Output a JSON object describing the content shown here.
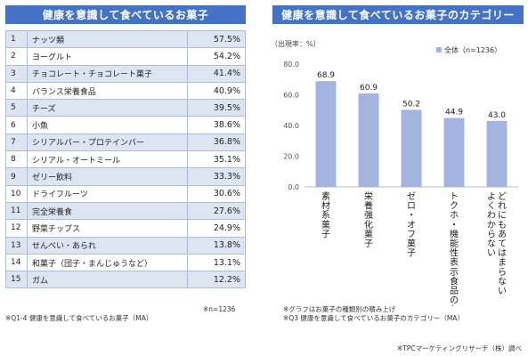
{
  "left_panel": {
    "title": "健康を意識して食べているお菓子",
    "rows": [
      {
        "rank": "1",
        "item": "ナッツ類",
        "pct": "57.5%"
      },
      {
        "rank": "2",
        "item": "ヨーグルト",
        "pct": "54.2%"
      },
      {
        "rank": "3",
        "item": "チョコレート・チョコレート菓子",
        "pct": "41.4%"
      },
      {
        "rank": "4",
        "item": "バランス栄養食品",
        "pct": "40.9%"
      },
      {
        "rank": "5",
        "item": "チーズ",
        "pct": "39.5%"
      },
      {
        "rank": "6",
        "item": "小魚",
        "pct": "38.6%"
      },
      {
        "rank": "7",
        "item": "シリアルバー・プロテインバー",
        "pct": "36.8%"
      },
      {
        "rank": "8",
        "item": "シリアル・オートミール",
        "pct": "35.1%"
      },
      {
        "rank": "9",
        "item": "ゼリー飲料",
        "pct": "33.3%"
      },
      {
        "rank": "10",
        "item": "ドライフルーツ",
        "pct": "30.6%"
      },
      {
        "rank": "11",
        "item": "完全栄養食",
        "pct": "27.6%"
      },
      {
        "rank": "12",
        "item": "野菜チップス",
        "pct": "24.9%"
      },
      {
        "rank": "13",
        "item": "せんべい・あられ",
        "pct": "13.8%"
      },
      {
        "rank": "14",
        "item": "和菓子（団子・まんじゅうなど）",
        "pct": "13.1%"
      },
      {
        "rank": "15",
        "item": "ガム",
        "pct": "12.2%"
      }
    ],
    "n_note": "※n=1236",
    "source_note": "※Q1-4 健康を意識して食べているお菓子（MA）"
  },
  "right_panel": {
    "title": "健康を意識して食べているお菓子のカテゴリー",
    "note1": "※グラフはお菓子の種類別の積み上げ",
    "note2": "※Q3 健康を意識して食べているお菓子のカテゴリー（MA）"
  },
  "credit": "※TPCマーケティングリサーチ（株）調べ",
  "colors": {
    "title_bg": "#4472c4",
    "bar": "#a3b4e0",
    "row_shade": "#dde5f3"
  },
  "chart_data": {
    "type": "bar",
    "ylabel": "（出現率：%）",
    "ylim": [
      0,
      80
    ],
    "yticks": [
      "0.0",
      "20.0",
      "40.0",
      "60.0",
      "80.0"
    ],
    "categories": [
      "素材系菓子",
      "栄養強化菓子",
      "ゼロ・オフ菓子",
      "トクホ・機能性表示食品のお菓子",
      "どれにもあてはまらない よくわからない"
    ],
    "series": [
      {
        "name": "全体（n=1236）",
        "values": [
          68.9,
          60.9,
          50.2,
          44.9,
          43.0
        ]
      }
    ],
    "value_labels": [
      "68.9",
      "60.9",
      "50.2",
      "44.9",
      "43.0"
    ],
    "legend": "top-right",
    "grid": false
  }
}
